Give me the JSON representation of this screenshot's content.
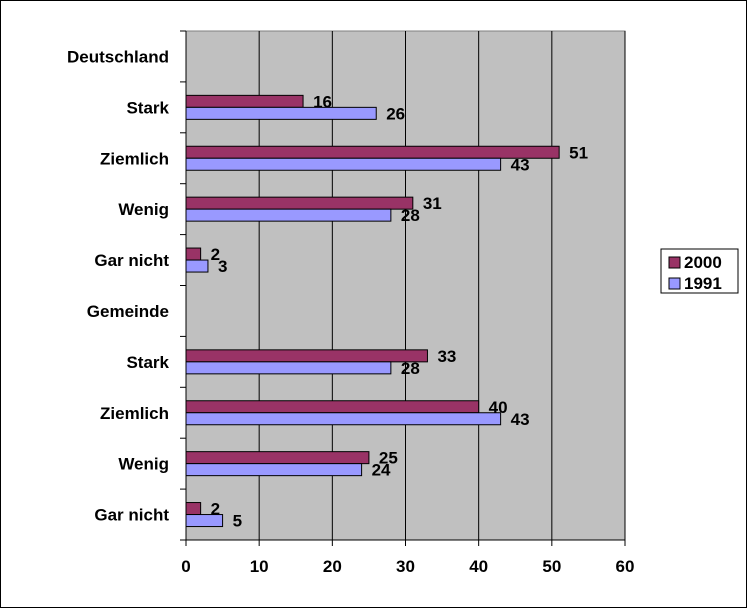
{
  "chart_data": {
    "type": "bar",
    "orientation": "horizontal",
    "categories": [
      "Deutschland",
      "Stark",
      "Ziemlich",
      "Wenig",
      "Gar nicht",
      "Gemeinde",
      "Stark",
      "Ziemlich",
      "Wenig",
      "Gar nicht"
    ],
    "series": [
      {
        "name": "2000",
        "values": [
          null,
          16,
          51,
          31,
          2,
          null,
          33,
          40,
          25,
          2
        ]
      },
      {
        "name": "1991",
        "values": [
          null,
          26,
          43,
          28,
          3,
          null,
          28,
          43,
          24,
          5
        ]
      }
    ],
    "xlim": [
      0,
      60
    ],
    "xticks": [
      0,
      10,
      20,
      30,
      40,
      50,
      60
    ],
    "title": "",
    "xlabel": "",
    "ylabel": "",
    "grid": true,
    "legend_position": "right",
    "colors": {
      "series_2000": "#993366",
      "series_1991": "#9999ff",
      "plot_background": "#c0c0c0"
    }
  }
}
